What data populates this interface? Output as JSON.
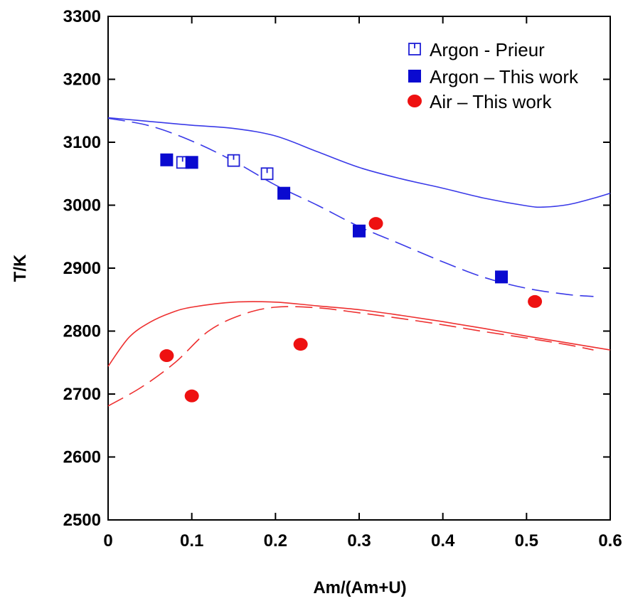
{
  "chart_data": {
    "type": "scatter",
    "title": "",
    "xlabel": "Am/(Am+U)",
    "ylabel": "T/K",
    "xlim": [
      0,
      0.6
    ],
    "ylim": [
      2500,
      3300
    ],
    "x_ticks": [
      "0",
      "0.1",
      "0.2",
      "0.3",
      "0.4",
      "0.5",
      "0.6"
    ],
    "y_ticks": [
      "2500",
      "2600",
      "2700",
      "2800",
      "2900",
      "3000",
      "3100",
      "3200",
      "3300"
    ],
    "grid": false,
    "legend_position": "top-right",
    "series": [
      {
        "name": "Argon - Prieur",
        "marker": "open-square",
        "color": "#1f1fd6",
        "points": [
          [
            0.089,
            3068
          ],
          [
            0.15,
            3071
          ],
          [
            0.19,
            3050
          ]
        ]
      },
      {
        "name": "Argon – This work",
        "marker": "filled-square",
        "color": "#0a0ad0",
        "points": [
          [
            0.07,
            3072
          ],
          [
            0.1,
            3068
          ],
          [
            0.21,
            3019
          ],
          [
            0.3,
            2959
          ],
          [
            0.47,
            2886
          ]
        ]
      },
      {
        "name": "Air – This work",
        "marker": "filled-circle",
        "color": "#ee1111",
        "points": [
          [
            0.07,
            2761
          ],
          [
            0.1,
            2697
          ],
          [
            0.23,
            2779
          ],
          [
            0.32,
            2971
          ],
          [
            0.51,
            2847
          ]
        ]
      }
    ],
    "curves": [
      {
        "style": "solid",
        "color": "#3a3ae8",
        "points": [
          [
            0,
            3139
          ],
          [
            0.05,
            3133
          ],
          [
            0.1,
            3127
          ],
          [
            0.15,
            3122
          ],
          [
            0.2,
            3110
          ],
          [
            0.25,
            3085
          ],
          [
            0.3,
            3060
          ],
          [
            0.35,
            3042
          ],
          [
            0.4,
            3027
          ],
          [
            0.45,
            3011
          ],
          [
            0.5,
            2999
          ],
          [
            0.52,
            2997
          ],
          [
            0.55,
            3001
          ],
          [
            0.58,
            3011
          ],
          [
            0.6,
            3019
          ]
        ]
      },
      {
        "style": "dashed",
        "color": "#3a3ae8",
        "points": [
          [
            0,
            3138
          ],
          [
            0.05,
            3126
          ],
          [
            0.1,
            3102
          ],
          [
            0.15,
            3070
          ],
          [
            0.2,
            3032
          ],
          [
            0.25,
            3000
          ],
          [
            0.3,
            2966
          ],
          [
            0.35,
            2938
          ],
          [
            0.4,
            2910
          ],
          [
            0.45,
            2885
          ],
          [
            0.5,
            2868
          ],
          [
            0.55,
            2858
          ],
          [
            0.58,
            2855
          ]
        ]
      },
      {
        "style": "solid",
        "color": "#ee3030",
        "points": [
          [
            0,
            2744
          ],
          [
            0.025,
            2790
          ],
          [
            0.05,
            2814
          ],
          [
            0.075,
            2829
          ],
          [
            0.1,
            2838
          ],
          [
            0.15,
            2846
          ],
          [
            0.2,
            2846
          ],
          [
            0.25,
            2840
          ],
          [
            0.3,
            2834
          ],
          [
            0.35,
            2825
          ],
          [
            0.4,
            2815
          ],
          [
            0.45,
            2804
          ],
          [
            0.5,
            2792
          ],
          [
            0.55,
            2781
          ],
          [
            0.6,
            2770
          ]
        ]
      },
      {
        "style": "dashed",
        "color": "#ee3030",
        "points": [
          [
            0,
            2681
          ],
          [
            0.04,
            2711
          ],
          [
            0.08,
            2750
          ],
          [
            0.12,
            2800
          ],
          [
            0.16,
            2826
          ],
          [
            0.2,
            2838
          ],
          [
            0.25,
            2837
          ],
          [
            0.3,
            2829
          ],
          [
            0.35,
            2820
          ],
          [
            0.4,
            2810
          ],
          [
            0.45,
            2799
          ],
          [
            0.5,
            2789
          ],
          [
            0.55,
            2778
          ],
          [
            0.58,
            2770
          ]
        ]
      }
    ]
  }
}
